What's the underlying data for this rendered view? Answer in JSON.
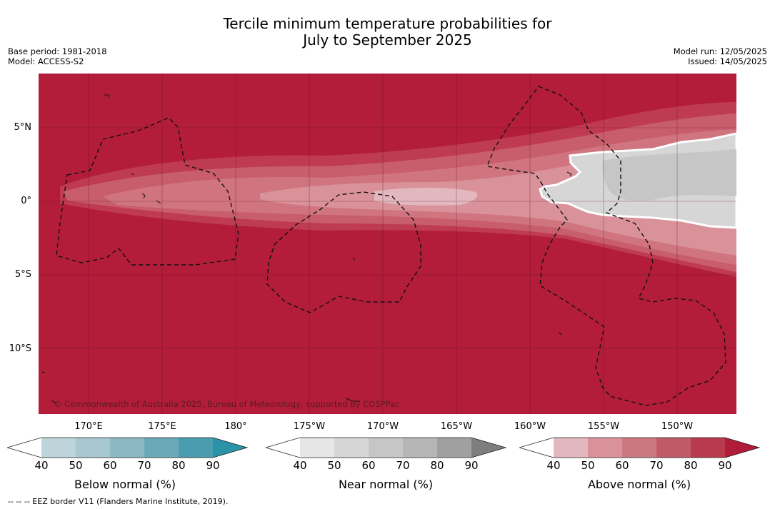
{
  "title": {
    "line1": "Tercile minimum temperature probabilities for",
    "line2": "July to September 2025"
  },
  "meta": {
    "base_period": "Base period: 1981-2018",
    "model": "Model: ACCESS-S2",
    "model_run": "Model run: 12/05/2025",
    "issued": "Issued: 14/05/2025"
  },
  "map": {
    "latitude_labels": [
      "5°N",
      "0°",
      "5°S",
      "10°S"
    ],
    "longitude_labels": [
      "170°E",
      "175°E",
      "180°",
      "175°W",
      "170°W",
      "165°W",
      "160°W",
      "155°W",
      "150°W"
    ],
    "copyright": "© Commonwealth of Australia 2025, Bureau of Meteorology, supported by COSPPac",
    "colors": {
      "ocean_above_90": "#b31d3a",
      "above_80": "#be3b52",
      "above_70": "#c85d6c",
      "above_60": "#d0757f",
      "above_50": "#d99299",
      "near_50": "#d6d6d6",
      "near_60": "#c6c6c6"
    }
  },
  "colorbars": {
    "below": {
      "label": "Below normal (%)",
      "ticks": [
        "40",
        "50",
        "60",
        "70",
        "80",
        "90"
      ],
      "colors": [
        "#ffffff",
        "#bcd4da",
        "#a8c8cf",
        "#8bb8c3",
        "#6aaab8",
        "#4a9dae",
        "#2a93a8"
      ]
    },
    "near": {
      "label": "Near normal (%)",
      "ticks": [
        "40",
        "50",
        "60",
        "70",
        "80",
        "90"
      ],
      "colors": [
        "#ffffff",
        "#e6e6e6",
        "#d6d6d6",
        "#c6c6c6",
        "#b6b6b6",
        "#a0a0a0",
        "#7e7e7e"
      ]
    },
    "above": {
      "label": "Above normal (%)",
      "ticks": [
        "40",
        "50",
        "60",
        "70",
        "80",
        "90"
      ],
      "colors": [
        "#ffffff",
        "#e2b8be",
        "#d99299",
        "#cc7880",
        "#c05a66",
        "#b93a4c",
        "#b11d38"
      ]
    }
  },
  "footnote": "--  --  -- EEZ border V11 (Flanders Marine Institute, 2019)."
}
